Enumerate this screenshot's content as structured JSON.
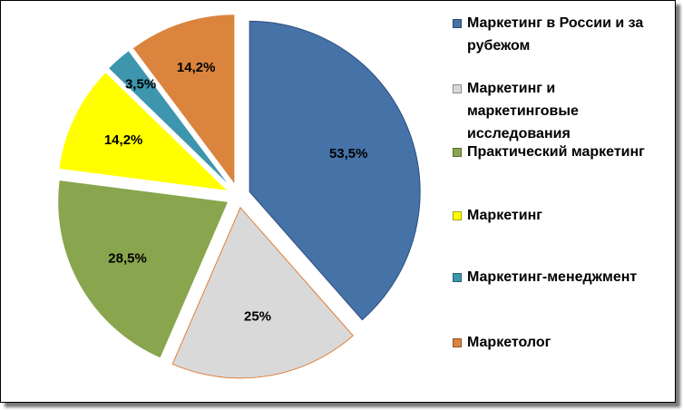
{
  "chart_data": {
    "type": "pie",
    "categories": [
      "Маркетинг в России и за рубежом",
      "Маркетинг и маркетинговые исследования",
      "Практический маркетинг",
      "Маркетинг",
      "Маркетинг-менеджмент",
      "Маркетолог"
    ],
    "values": [
      53.5,
      25,
      28.5,
      14.2,
      3.5,
      14.2
    ],
    "value_labels": [
      "53,5%",
      "25%",
      "28,5%",
      "14,2%",
      "3,5%",
      "14,2%"
    ],
    "colors": [
      "#4572a7",
      "#d9d9d9",
      "#89a54e",
      "#ffff00",
      "#3d96ae",
      "#db843d"
    ],
    "legend": "right"
  }
}
